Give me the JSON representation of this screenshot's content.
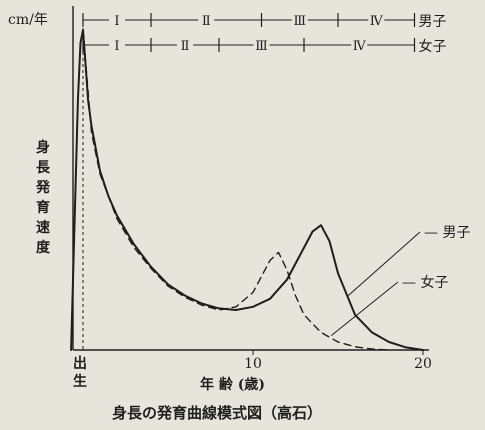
{
  "caption": "身長の発育曲線模式図（高石）",
  "chart_data": {
    "type": "line",
    "title": "",
    "ylabel": "cm/年",
    "ylabel_vertical": "身長発育速度",
    "xlabel": "年 齢 (歳)",
    "xlim": [
      0,
      20
    ],
    "x_ticks": [
      {
        "x": 10,
        "label": "10"
      },
      {
        "x": 20,
        "label": "20"
      }
    ],
    "birth_label": [
      "出",
      "生"
    ],
    "grid": false,
    "legend": "inline-right",
    "stage_rows": [
      {
        "name": "男子",
        "stages": [
          {
            "label": "Ⅰ",
            "start": 0,
            "end": 4
          },
          {
            "label": "Ⅱ",
            "start": 4,
            "end": 10.5
          },
          {
            "label": "Ⅲ",
            "start": 10.5,
            "end": 15
          },
          {
            "label": "Ⅳ",
            "start": 15,
            "end": 19.5
          }
        ]
      },
      {
        "name": "女子",
        "stages": [
          {
            "label": "Ⅰ",
            "start": 0,
            "end": 4
          },
          {
            "label": "Ⅱ",
            "start": 4,
            "end": 8
          },
          {
            "label": "Ⅲ",
            "start": 8,
            "end": 13
          },
          {
            "label": "Ⅳ",
            "start": 13,
            "end": 19.5
          }
        ]
      }
    ],
    "series": [
      {
        "name": "男子",
        "style": "solid",
        "x": [
          -0.7,
          -0.55,
          -0.3,
          -0.15,
          0,
          0.1,
          0.3,
          0.5,
          1,
          1.5,
          2,
          3,
          4,
          5,
          6,
          7,
          8,
          9,
          10,
          11,
          12,
          12.5,
          13,
          13.5,
          14,
          14.5,
          15,
          16,
          17,
          18,
          19,
          20
        ],
        "y": [
          0,
          30,
          78,
          96,
          100,
          93,
          78,
          70,
          56,
          48,
          42,
          33,
          26,
          20.5,
          17,
          14.5,
          13,
          12.5,
          13.5,
          16,
          22,
          27,
          32,
          37,
          39,
          34,
          24,
          11,
          5.5,
          2.5,
          0.8,
          0
        ]
      },
      {
        "name": "女子",
        "style": "dashed",
        "x": [
          0,
          0.5,
          1,
          2,
          3,
          4,
          5,
          6,
          7,
          8,
          9,
          10,
          10.5,
          11,
          11.5,
          12,
          12.5,
          13,
          14,
          15,
          16,
          17,
          18
        ],
        "y": [
          100,
          68,
          55,
          41,
          32,
          25.5,
          20,
          16.5,
          14,
          12.5,
          13.5,
          18,
          23,
          28,
          30.5,
          25,
          17,
          11,
          5.5,
          2.5,
          1,
          0.3,
          0
        ]
      }
    ]
  }
}
